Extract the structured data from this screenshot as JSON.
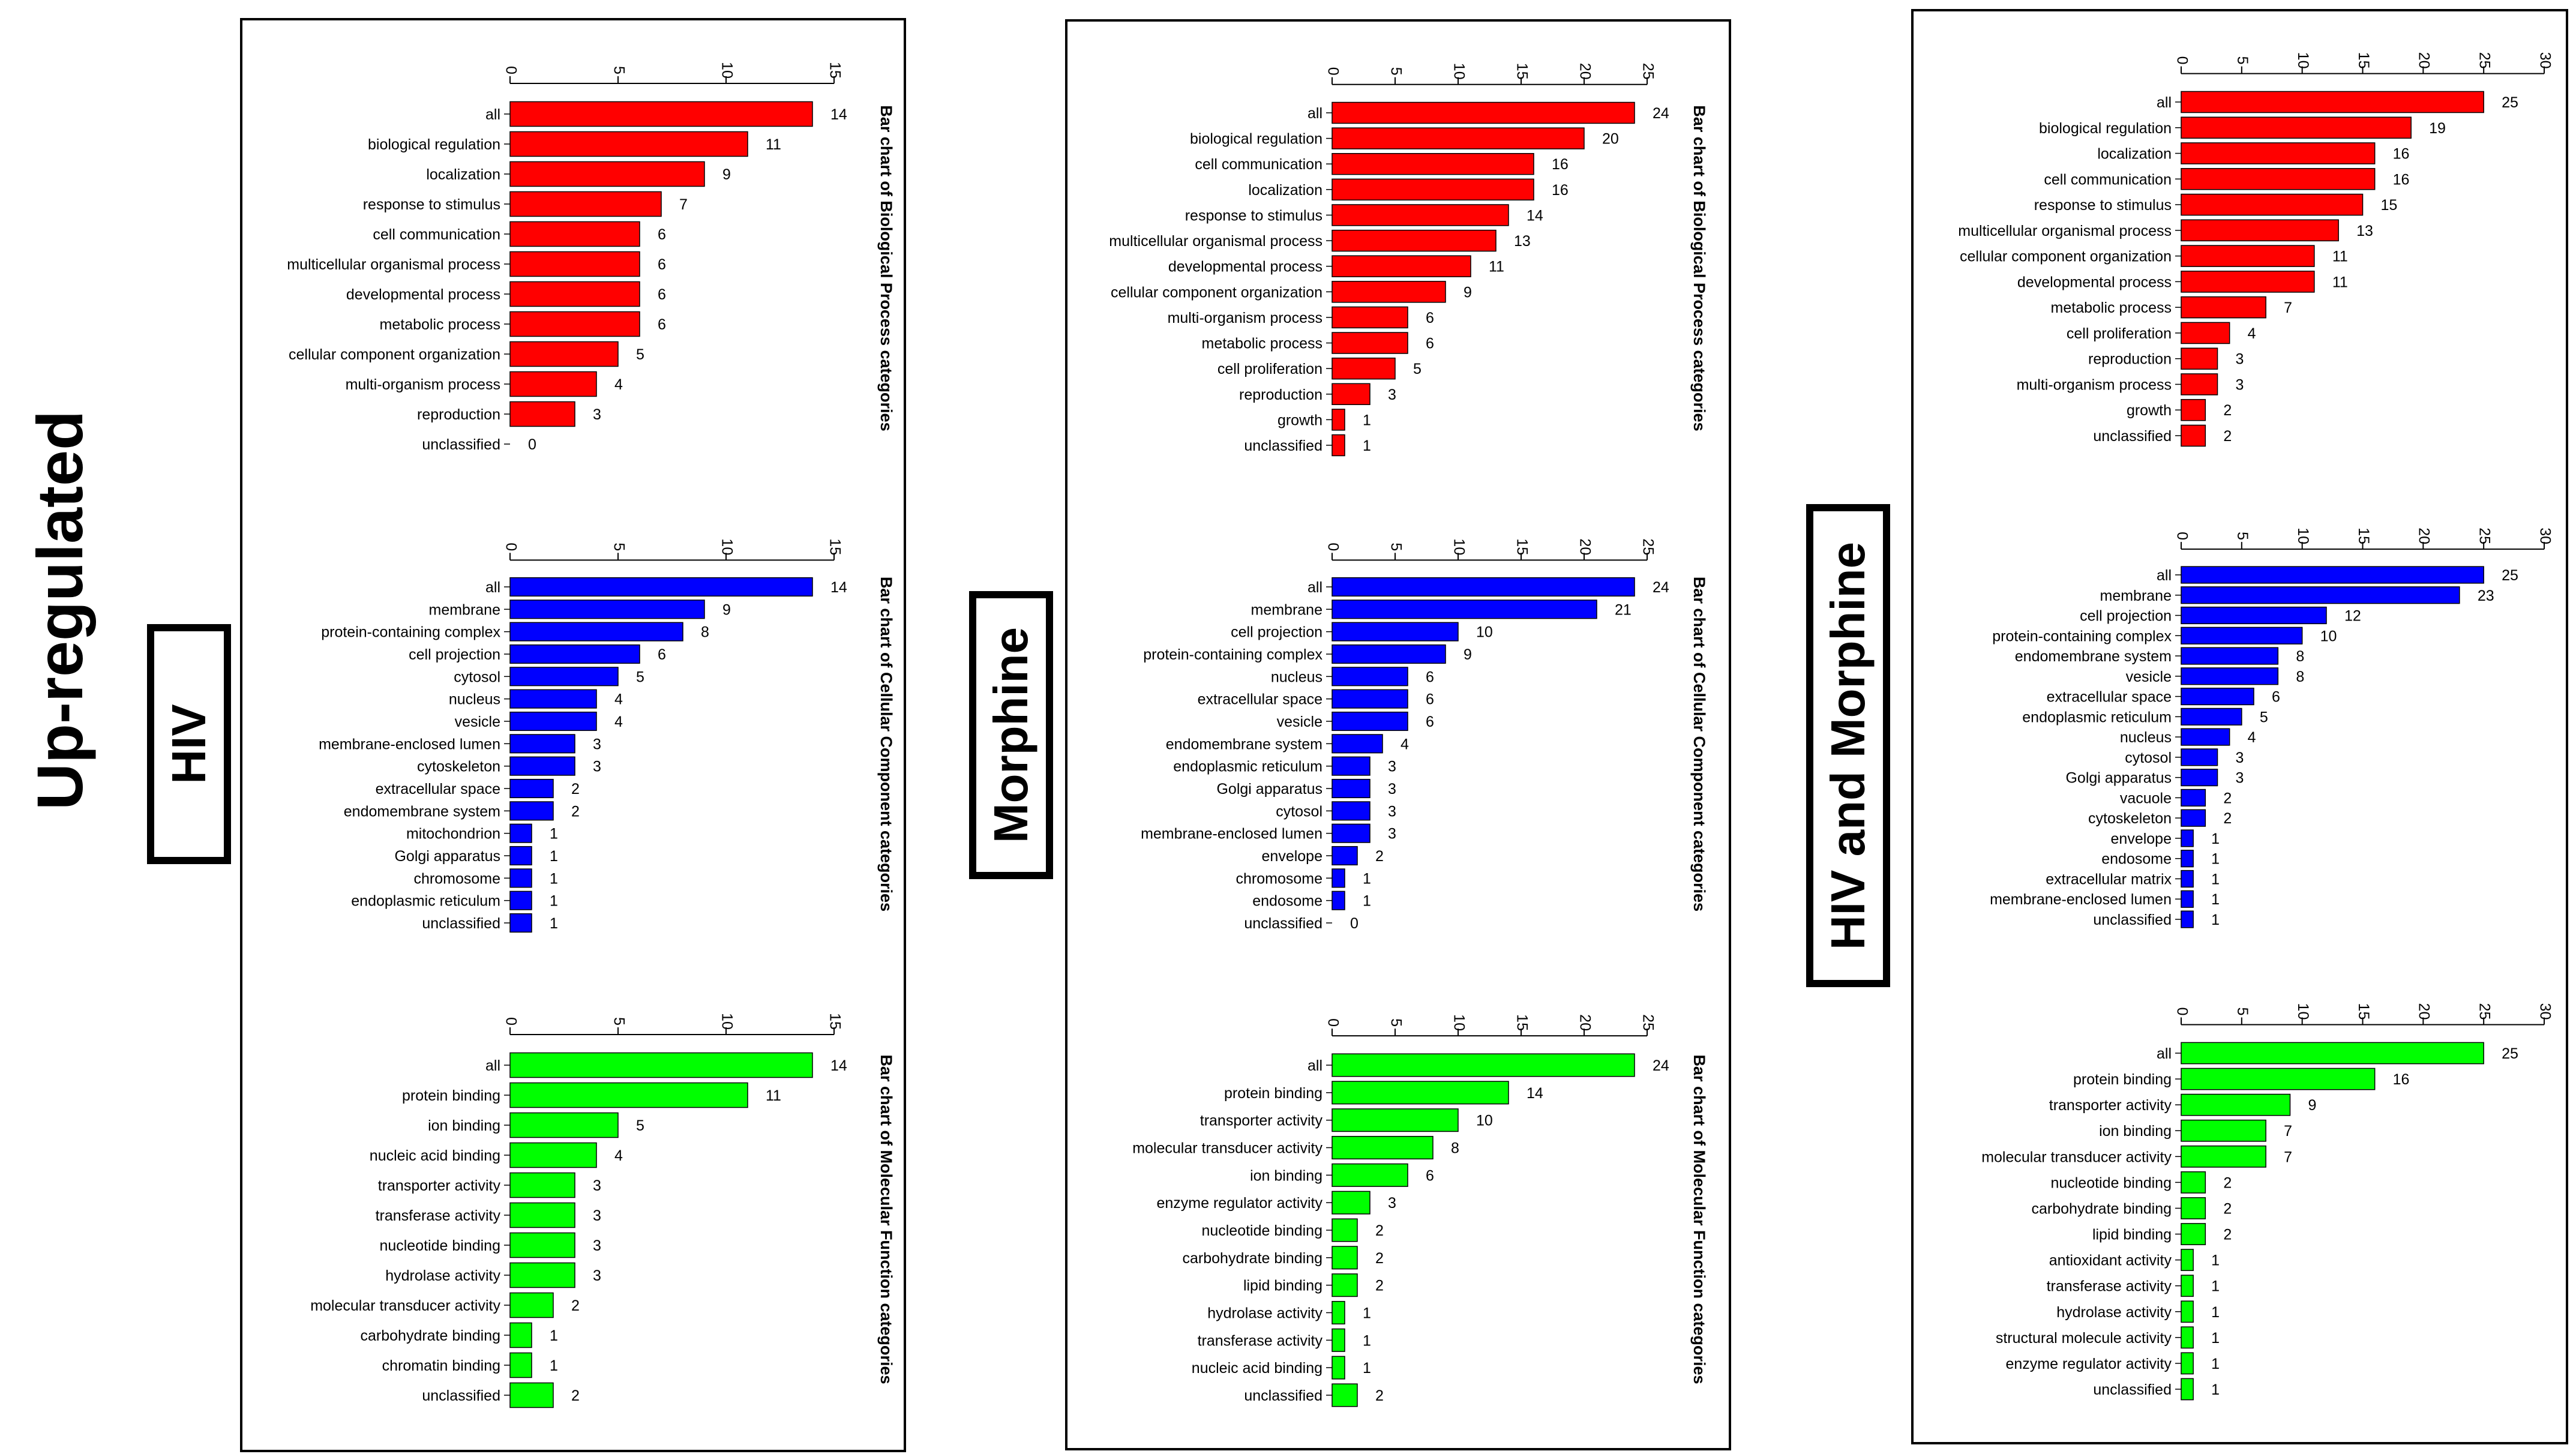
{
  "main_title": "Up-regulated",
  "conditions": {
    "hiv": "HIV",
    "morphine": "Morphine",
    "both": "HIV and Morphine"
  },
  "colors": {
    "biological_process": "#ff0000",
    "cellular_component": "#0000ff",
    "molecular_function": "#00ff00"
  },
  "chart_data": [
    {
      "id": "hiv-bp",
      "type": "bar",
      "condition": "HIV",
      "color": "#ff0000",
      "title": "Bar chart of Biological Process categories",
      "xlim": [
        0,
        15
      ],
      "ticks": [
        0,
        5,
        10,
        15
      ],
      "categories": [
        "all",
        "biological regulation",
        "localization",
        "response to stimulus",
        "cell communication",
        "multicellular organismal process",
        "developmental process",
        "metabolic process",
        "cellular component organization",
        "multi-organism process",
        "reproduction",
        "unclassified"
      ],
      "values": [
        14,
        11,
        9,
        7,
        6,
        6,
        6,
        6,
        5,
        4,
        3,
        0
      ]
    },
    {
      "id": "hiv-cc",
      "type": "bar",
      "condition": "HIV",
      "color": "#0000ff",
      "title": "Bar chart of Cellular Component categories",
      "xlim": [
        0,
        15
      ],
      "ticks": [
        0,
        5,
        10,
        15
      ],
      "categories": [
        "all",
        "membrane",
        "protein-containing complex",
        "cell projection",
        "cytosol",
        "nucleus",
        "vesicle",
        "membrane-enclosed lumen",
        "cytoskeleton",
        "extracellular space",
        "endomembrane system",
        "mitochondrion",
        "Golgi apparatus",
        "chromosome",
        "endoplasmic reticulum",
        "unclassified"
      ],
      "values": [
        14,
        9,
        8,
        6,
        5,
        4,
        4,
        3,
        3,
        2,
        2,
        1,
        1,
        1,
        1,
        1
      ]
    },
    {
      "id": "hiv-mf",
      "type": "bar",
      "condition": "HIV",
      "color": "#00ff00",
      "title": "Bar chart of Molecular Function categories",
      "xlim": [
        0,
        15
      ],
      "ticks": [
        0,
        5,
        10,
        15
      ],
      "categories": [
        "all",
        "protein binding",
        "ion binding",
        "nucleic acid binding",
        "transporter activity",
        "transferase activity",
        "nucleotide binding",
        "hydrolase activity",
        "molecular transducer activity",
        "carbohydrate binding",
        "chromatin binding",
        "unclassified"
      ],
      "values": [
        14,
        11,
        5,
        4,
        3,
        3,
        3,
        3,
        2,
        1,
        1,
        2
      ]
    },
    {
      "id": "morphine-bp",
      "type": "bar",
      "condition": "Morphine",
      "color": "#ff0000",
      "title": "Bar chart of Biological Process categories",
      "xlim": [
        0,
        25
      ],
      "ticks": [
        0,
        5,
        10,
        15,
        20,
        25
      ],
      "categories": [
        "all",
        "biological regulation",
        "cell communication",
        "localization",
        "response to stimulus",
        "multicellular organismal process",
        "developmental process",
        "cellular component organization",
        "multi-organism process",
        "metabolic process",
        "cell proliferation",
        "reproduction",
        "growth",
        "unclassified"
      ],
      "values": [
        24,
        20,
        16,
        16,
        14,
        13,
        11,
        9,
        6,
        6,
        5,
        3,
        1,
        1
      ]
    },
    {
      "id": "morphine-cc",
      "type": "bar",
      "condition": "Morphine",
      "color": "#0000ff",
      "title": "Bar chart of Cellular Component categories",
      "xlim": [
        0,
        25
      ],
      "ticks": [
        0,
        5,
        10,
        15,
        20,
        25
      ],
      "categories": [
        "all",
        "membrane",
        "cell projection",
        "protein-containing complex",
        "nucleus",
        "extracellular space",
        "vesicle",
        "endomembrane system",
        "endoplasmic reticulum",
        "Golgi apparatus",
        "cytosol",
        "membrane-enclosed lumen",
        "envelope",
        "chromosome",
        "endosome",
        "unclassified"
      ],
      "values": [
        24,
        21,
        10,
        9,
        6,
        6,
        6,
        4,
        3,
        3,
        3,
        3,
        2,
        1,
        1,
        0
      ]
    },
    {
      "id": "morphine-mf",
      "type": "bar",
      "condition": "Morphine",
      "color": "#00ff00",
      "title": "Bar chart of Molecular Function categories",
      "xlim": [
        0,
        25
      ],
      "ticks": [
        0,
        5,
        10,
        15,
        20,
        25
      ],
      "categories": [
        "all",
        "protein binding",
        "transporter activity",
        "molecular transducer activity",
        "ion binding",
        "enzyme regulator activity",
        "nucleotide binding",
        "carbohydrate binding",
        "lipid binding",
        "hydrolase activity",
        "transferase activity",
        "nucleic acid binding",
        "unclassified"
      ],
      "values": [
        24,
        14,
        10,
        8,
        6,
        3,
        2,
        2,
        2,
        1,
        1,
        1,
        2
      ]
    },
    {
      "id": "both-bp",
      "type": "bar",
      "condition": "HIV and Morphine",
      "color": "#ff0000",
      "title": "Bar chart of Biological Process categories",
      "xlim": [
        0,
        30
      ],
      "ticks": [
        0,
        5,
        10,
        15,
        20,
        25,
        30
      ],
      "categories": [
        "all",
        "biological regulation",
        "localization",
        "cell communication",
        "response to stimulus",
        "multicellular organismal process",
        "cellular component organization",
        "developmental process",
        "metabolic process",
        "cell proliferation",
        "reproduction",
        "multi-organism process",
        "growth",
        "unclassified"
      ],
      "values": [
        25,
        19,
        16,
        16,
        15,
        13,
        11,
        11,
        7,
        4,
        3,
        3,
        2,
        2
      ]
    },
    {
      "id": "both-cc",
      "type": "bar",
      "condition": "HIV and Morphine",
      "color": "#0000ff",
      "title": "Bar chart of Cellular Component categories",
      "xlim": [
        0,
        30
      ],
      "ticks": [
        0,
        5,
        10,
        15,
        20,
        25,
        30
      ],
      "categories": [
        "all",
        "membrane",
        "cell projection",
        "protein-containing complex",
        "endomembrane system",
        "vesicle",
        "extracellular space",
        "endoplasmic reticulum",
        "nucleus",
        "cytosol",
        "Golgi apparatus",
        "vacuole",
        "cytoskeleton",
        "envelope",
        "endosome",
        "extracellular matrix",
        "membrane-enclosed lumen",
        "unclassified"
      ],
      "values": [
        25,
        23,
        12,
        10,
        8,
        8,
        6,
        5,
        4,
        3,
        3,
        2,
        2,
        1,
        1,
        1,
        1,
        1
      ]
    },
    {
      "id": "both-mf",
      "type": "bar",
      "condition": "HIV and Morphine",
      "color": "#00ff00",
      "title": "Bar chart of Molecular Function categories",
      "xlim": [
        0,
        30
      ],
      "ticks": [
        0,
        5,
        10,
        15,
        20,
        25,
        30
      ],
      "categories": [
        "all",
        "protein binding",
        "transporter activity",
        "ion binding",
        "molecular transducer activity",
        "nucleotide binding",
        "carbohydrate binding",
        "lipid binding",
        "antioxidant activity",
        "transferase activity",
        "hydrolase activity",
        "structural molecule activity",
        "enzyme regulator activity",
        "unclassified"
      ],
      "values": [
        25,
        16,
        9,
        7,
        7,
        2,
        2,
        2,
        1,
        1,
        1,
        1,
        1,
        1
      ]
    }
  ]
}
